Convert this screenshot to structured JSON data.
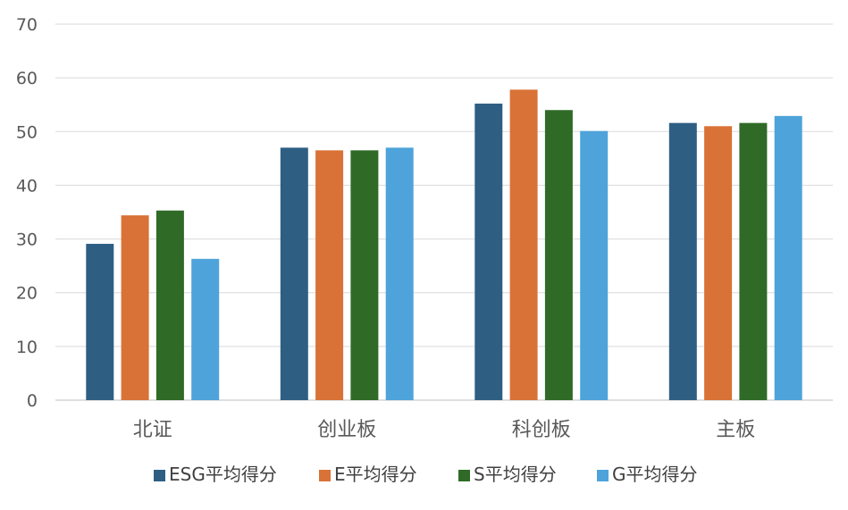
{
  "chart_data": {
    "type": "bar",
    "title": "",
    "xlabel": "",
    "ylabel": "",
    "categories": [
      "北证",
      "创业板",
      "科创板",
      "主板"
    ],
    "series": [
      {
        "name": "ESG平均得分",
        "color": "#2E5F83",
        "values": [
          29.1,
          47.0,
          55.2,
          51.6
        ]
      },
      {
        "name": "E平均得分",
        "color": "#D97236",
        "values": [
          34.4,
          46.5,
          57.8,
          51.0
        ]
      },
      {
        "name": "S平均得分",
        "color": "#2F6B27",
        "values": [
          35.3,
          46.5,
          54.0,
          51.6
        ]
      },
      {
        "name": "G平均得分",
        "color": "#4EA3DA",
        "values": [
          26.3,
          47.0,
          50.1,
          52.9
        ]
      }
    ],
    "ylim": [
      0,
      70
    ],
    "yticks": [
      0,
      10,
      20,
      30,
      40,
      50,
      60,
      70
    ],
    "grid": true,
    "legend_position": "bottom"
  }
}
